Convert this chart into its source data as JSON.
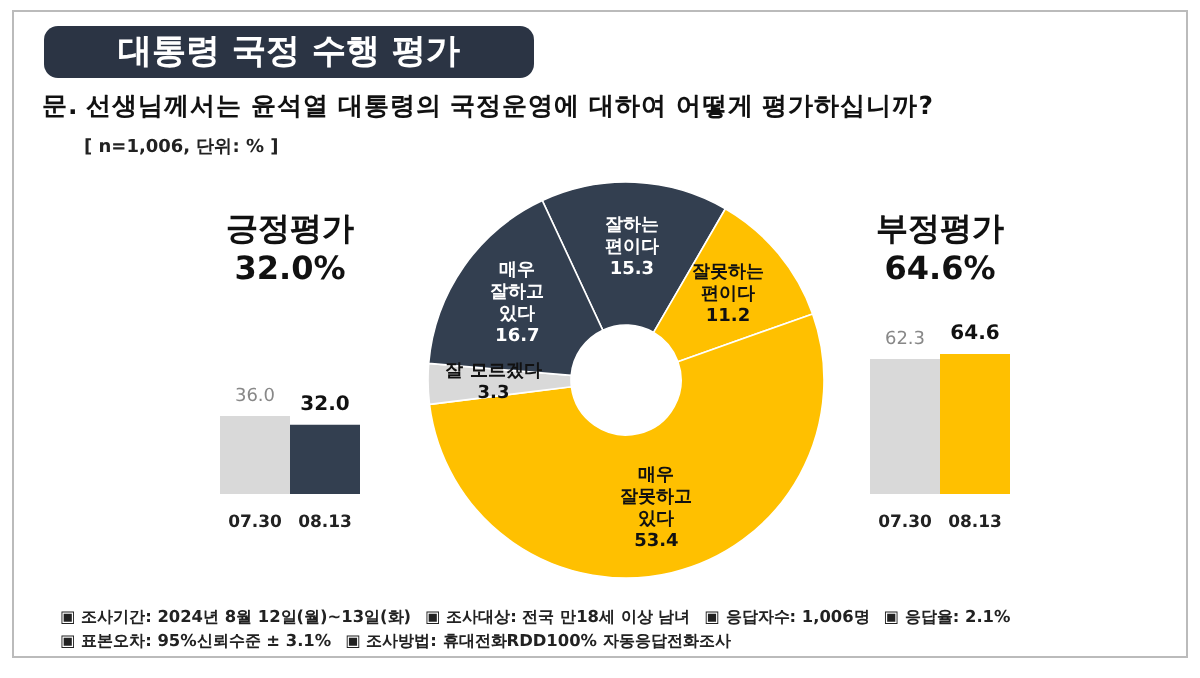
{
  "chart_data": [
    {
      "type": "bar",
      "title": "긍정평가",
      "subtitle": "32.0%",
      "categories": [
        "07.30",
        "08.13"
      ],
      "values": [
        36.0,
        32.0
      ],
      "colors": [
        "#d9d9d9",
        "#333f50"
      ],
      "value_labels": [
        "36.0",
        "32.0"
      ]
    },
    {
      "type": "donut",
      "title": "대통령 국정 수행 평가",
      "subtitle": "문. 선생님께서는 윤석열 대통령의 국정운영에 대하여 어떻게 평가하십니까?",
      "categories": [
        "잘하는 편이다",
        "잘못하는 편이다",
        "매우 잘못하고 있다",
        "잘 모르겠다",
        "매우 잘하고 있다"
      ],
      "values": [
        15.3,
        11.2,
        53.4,
        3.3,
        16.7
      ],
      "colors": [
        "#333f50",
        "#ffc000",
        "#ffc000",
        "#d9d9d9",
        "#333f50"
      ],
      "data_labels": true,
      "annotations": [
        "[ n=1,006, 단위: % ]",
        "▣ 조사기간: 2024년 8월 12일(월)~13일(화)",
        "▣ 조사대상: 전국 만18세 이상 남녀",
        "▣ 응답자수: 1,006명",
        "▣ 응답율: 2.1%",
        "▣ 표본오차: 95%신뢰수준 ± 3.1%",
        "▣ 조사방법: 휴대전화RDD100% 자동응답전화조사"
      ]
    },
    {
      "type": "bar",
      "title": "부정평가",
      "subtitle": "64.6%",
      "categories": [
        "07.30",
        "08.13"
      ],
      "values": [
        62.3,
        64.6
      ],
      "colors": [
        "#d9d9d9",
        "#ffc000"
      ],
      "value_labels": [
        "62.3",
        "64.6"
      ]
    }
  ]
}
